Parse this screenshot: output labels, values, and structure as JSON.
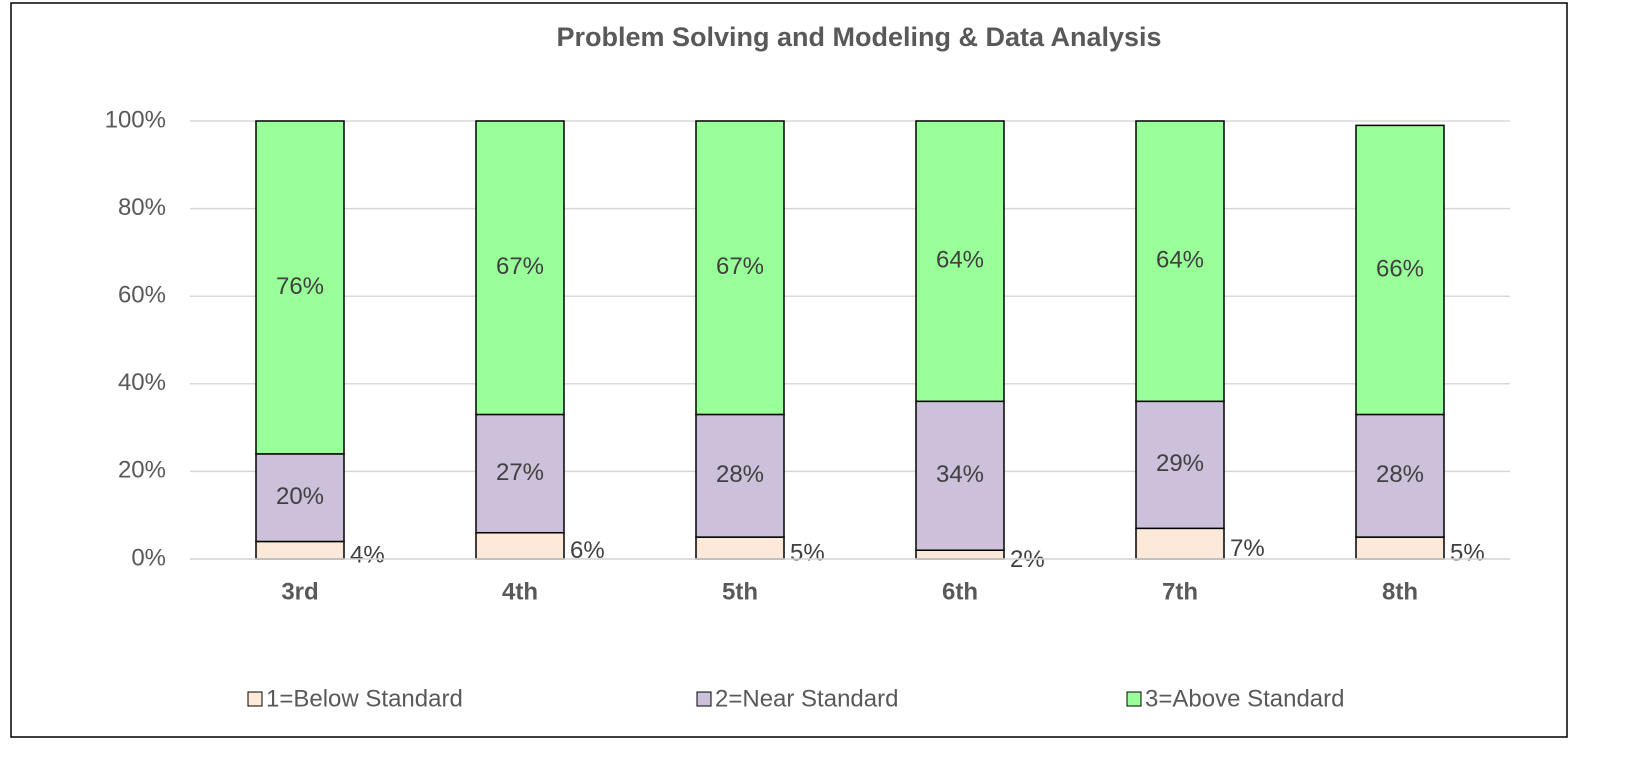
{
  "chart_data": {
    "type": "stacked_bar",
    "title": "Problem Solving and Modeling & Data Analysis",
    "categories": [
      "3rd",
      "4th",
      "5th",
      "6th",
      "7th",
      "8th"
    ],
    "series": [
      {
        "name": "1=Below Standard",
        "color": "#fde9d9",
        "values": [
          4,
          6,
          5,
          2,
          7,
          5
        ],
        "value_labels": [
          "4%",
          "6%",
          "5%",
          "2%",
          "7%",
          "5%"
        ]
      },
      {
        "name": "2=Near Standard",
        "color": "#ccc0da",
        "values": [
          20,
          27,
          28,
          34,
          29,
          28
        ],
        "value_labels": [
          "20%",
          "27%",
          "28%",
          "34%",
          "29%",
          "28%"
        ]
      },
      {
        "name": "3=Above Standard",
        "color": "#99ff99",
        "values": [
          76,
          67,
          67,
          64,
          64,
          66
        ],
        "value_labels": [
          "76%",
          "67%",
          "67%",
          "64%",
          "64%",
          "66%"
        ]
      }
    ],
    "ylim": [
      0,
      100
    ],
    "yticks": [
      {
        "value": 0,
        "label": "0%"
      },
      {
        "value": 20,
        "label": "20%"
      },
      {
        "value": 40,
        "label": "40%"
      },
      {
        "value": 60,
        "label": "60%"
      },
      {
        "value": 80,
        "label": "80%"
      },
      {
        "value": 100,
        "label": "100%"
      }
    ],
    "grid": true,
    "legend": "bottom"
  }
}
